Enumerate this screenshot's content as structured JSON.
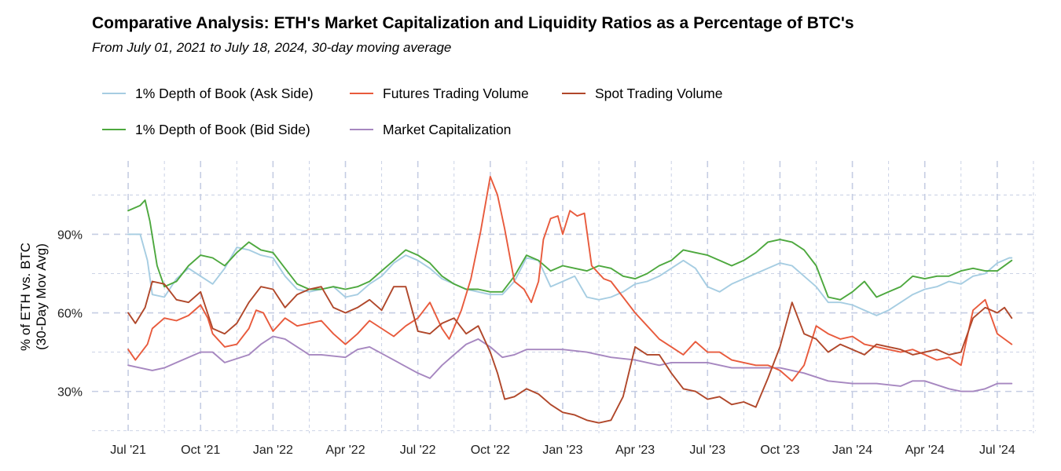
{
  "chart_data": {
    "type": "line",
    "title": "Comparative Analysis: ETH's Market Capitalization and Liquidity Ratios as a Percentage of BTC's",
    "subtitle": "From July 01, 2021 to July 18, 2024, 30-day moving average",
    "ylabel_line1": "% of ETH vs. BTC",
    "ylabel_line2": "(30-Day Mov Avg)",
    "ylim": [
      14,
      118
    ],
    "xlim": [
      -1.5,
      37.6
    ],
    "y_ticks": [
      {
        "value": 30,
        "label": "30%"
      },
      {
        "value": 60,
        "label": "60%"
      },
      {
        "value": 90,
        "label": "90%"
      }
    ],
    "x_ticks": [
      {
        "value": 0,
        "label": "Jul '21"
      },
      {
        "value": 3,
        "label": "Oct '21"
      },
      {
        "value": 6,
        "label": "Jan '22"
      },
      {
        "value": 9,
        "label": "Apr '22"
      },
      {
        "value": 12,
        "label": "Jul '22"
      },
      {
        "value": 15,
        "label": "Oct '22"
      },
      {
        "value": 18,
        "label": "Jan '23"
      },
      {
        "value": 21,
        "label": "Apr '23"
      },
      {
        "value": 24,
        "label": "Jul '23"
      },
      {
        "value": 27,
        "label": "Oct '23"
      },
      {
        "value": 30,
        "label": "Jan '24"
      },
      {
        "value": 33,
        "label": "Apr '24"
      },
      {
        "value": 36,
        "label": "Jul '24"
      }
    ],
    "grid": true,
    "legend_position": "top-left",
    "series": [
      {
        "name": "1% Depth of Book (Ask Side)",
        "color": "#a6cde2",
        "x": [
          0,
          0.5,
          0.8,
          1,
          1.5,
          2,
          2.5,
          3,
          3.5,
          4,
          4.5,
          5,
          5.5,
          6,
          6.5,
          7,
          7.5,
          8,
          8.5,
          9,
          9.5,
          10,
          10.5,
          11,
          11.5,
          12,
          12.5,
          13,
          13.5,
          14,
          14.5,
          15,
          15.5,
          16,
          16.5,
          17,
          17.5,
          18,
          18.5,
          19,
          19.5,
          20,
          20.5,
          21,
          21.5,
          22,
          22.5,
          23,
          23.5,
          24,
          24.5,
          25,
          25.5,
          26,
          26.5,
          27,
          27.5,
          28,
          28.5,
          29,
          29.5,
          30,
          30.5,
          31,
          31.5,
          32,
          32.5,
          33,
          33.5,
          34,
          34.5,
          35,
          35.5,
          36,
          36.5,
          36.6
        ],
        "y": [
          90,
          90,
          80,
          67,
          66,
          73,
          77,
          74,
          71,
          77,
          85,
          84,
          82,
          81,
          74,
          69,
          68,
          69,
          70,
          66,
          67,
          71,
          74,
          79,
          82,
          80,
          77,
          73,
          71,
          69,
          68,
          67,
          67,
          72,
          81,
          80,
          70,
          72,
          74,
          66,
          65,
          66,
          68,
          71,
          72,
          74,
          77,
          80,
          77,
          70,
          68,
          71,
          73,
          75,
          77,
          79,
          78,
          74,
          70,
          64,
          64,
          63,
          61,
          59,
          61,
          64,
          67,
          69,
          70,
          72,
          71,
          74,
          75,
          79,
          81,
          81
        ]
      },
      {
        "name": "1% Depth of Book (Bid Side)",
        "color": "#4da83e",
        "x": [
          0,
          0.5,
          0.7,
          0.9,
          1.2,
          1.5,
          2,
          2.5,
          3,
          3.5,
          4,
          4.5,
          5,
          5.5,
          6,
          6.5,
          7,
          7.5,
          8,
          8.5,
          9,
          9.5,
          10,
          10.5,
          11,
          11.5,
          12,
          12.5,
          13,
          13.5,
          14,
          14.5,
          15,
          15.5,
          16,
          16.5,
          17,
          17.5,
          18,
          18.5,
          19,
          19.5,
          20,
          20.5,
          21,
          21.5,
          22,
          22.5,
          23,
          23.5,
          24,
          24.5,
          25,
          25.5,
          26,
          26.5,
          27,
          27.5,
          28,
          28.5,
          29,
          29.5,
          30,
          30.5,
          31,
          31.5,
          32,
          32.5,
          33,
          33.5,
          34,
          34.5,
          35,
          35.5,
          36,
          36.6
        ],
        "y": [
          99,
          101,
          103,
          95,
          78,
          70,
          72,
          78,
          82,
          81,
          78,
          83,
          87,
          84,
          83,
          77,
          71,
          69,
          69,
          70,
          69,
          70,
          72,
          76,
          80,
          84,
          82,
          79,
          74,
          71,
          69,
          69,
          68,
          68,
          74,
          82,
          80,
          76,
          78,
          77,
          76,
          78,
          77,
          74,
          73,
          75,
          78,
          80,
          84,
          83,
          82,
          80,
          78,
          80,
          83,
          87,
          88,
          87,
          84,
          78,
          66,
          65,
          68,
          72,
          66,
          68,
          70,
          74,
          73,
          74,
          74,
          76,
          77,
          76,
          76,
          80
        ]
      },
      {
        "name": "Market Capitalization",
        "color": "#a687c0",
        "x": [
          0,
          1,
          1.5,
          2,
          3,
          3.5,
          4,
          5,
          5.5,
          6,
          6.5,
          7,
          7.5,
          8,
          9,
          9.5,
          10,
          11,
          12,
          12.5,
          13,
          13.5,
          14,
          14.5,
          15,
          15.5,
          16,
          16.5,
          17,
          18,
          19,
          20,
          21,
          22,
          22.5,
          23,
          24,
          25,
          26,
          27,
          28,
          29,
          30,
          31,
          32,
          32.5,
          33,
          34,
          34.5,
          35,
          35.5,
          36,
          36.6
        ],
        "y": [
          40,
          38,
          39,
          41,
          45,
          45,
          41,
          44,
          48,
          51,
          50,
          47,
          44,
          44,
          43,
          46,
          47,
          42,
          37,
          35,
          40,
          44,
          48,
          50,
          47,
          43,
          44,
          46,
          46,
          46,
          45,
          43,
          42,
          40,
          41,
          41,
          41,
          39,
          39,
          39,
          37,
          34,
          33,
          33,
          32,
          34,
          34,
          31,
          30,
          30,
          31,
          33,
          33
        ]
      },
      {
        "name": "Futures Trading Volume",
        "color": "#e85a3c",
        "x": [
          0,
          0.3,
          0.8,
          1,
          1.5,
          2,
          2.5,
          3,
          3.3,
          3.5,
          4,
          4.5,
          5,
          5.3,
          5.6,
          6,
          6.5,
          7,
          7.5,
          8,
          8.5,
          9,
          9.5,
          10,
          10.5,
          11,
          11.5,
          12,
          12.5,
          13,
          13.3,
          13.8,
          14.2,
          14.6,
          15,
          15.3,
          15.6,
          16,
          16.4,
          16.7,
          17,
          17.2,
          17.5,
          17.8,
          18,
          18.3,
          18.6,
          18.9,
          19.2,
          19.7,
          20,
          20.5,
          21,
          21.5,
          22,
          22.5,
          23,
          23.5,
          24,
          24.5,
          25,
          25.5,
          26,
          26.5,
          27,
          27.5,
          28,
          28.5,
          29,
          29.5,
          30,
          30.5,
          31,
          31.5,
          32,
          32.5,
          33,
          33.5,
          34,
          34.5,
          35,
          35.5,
          36,
          36.3,
          36.6
        ],
        "y": [
          46,
          42,
          48,
          54,
          58,
          57,
          59,
          63,
          58,
          52,
          47,
          48,
          54,
          61,
          60,
          53,
          58,
          55,
          56,
          57,
          52,
          48,
          52,
          57,
          54,
          51,
          55,
          58,
          64,
          54,
          50,
          61,
          73,
          91,
          112,
          105,
          92,
          72,
          69,
          64,
          72,
          88,
          96,
          97,
          90,
          99,
          97,
          98,
          78,
          73,
          72,
          66,
          60,
          55,
          50,
          47,
          44,
          49,
          45,
          45,
          42,
          41,
          40,
          40,
          38,
          34,
          40,
          55,
          52,
          50,
          51,
          48,
          47,
          46,
          45,
          46,
          44,
          42,
          43,
          40,
          61,
          65,
          52,
          50,
          48
        ]
      },
      {
        "name": "Spot Trading Volume",
        "color": "#b0472a",
        "x": [
          0,
          0.3,
          0.7,
          1,
          1.5,
          2,
          2.5,
          3,
          3.5,
          4,
          4.5,
          5,
          5.5,
          6,
          6.5,
          7,
          7.5,
          8,
          8.5,
          9,
          9.5,
          10,
          10.5,
          11,
          11.5,
          12,
          12.5,
          13,
          13.5,
          14,
          14.5,
          15,
          15.3,
          15.6,
          16,
          16.5,
          17,
          17.5,
          18,
          18.5,
          19,
          19.5,
          20,
          20.5,
          21,
          21.5,
          22,
          22.5,
          23,
          23.5,
          24,
          24.5,
          25,
          25.5,
          26,
          26.5,
          27,
          27.5,
          28,
          28.5,
          29,
          29.5,
          30,
          30.5,
          31,
          31.5,
          32,
          32.5,
          33,
          33.5,
          34,
          34.5,
          35,
          35.5,
          36,
          36.3,
          36.6
        ],
        "y": [
          60,
          56,
          62,
          72,
          71,
          65,
          64,
          68,
          54,
          52,
          56,
          64,
          70,
          69,
          62,
          67,
          69,
          70,
          62,
          60,
          62,
          65,
          61,
          70,
          70,
          53,
          52,
          56,
          58,
          52,
          55,
          45,
          37,
          27,
          28,
          31,
          29,
          25,
          22,
          21,
          19,
          18,
          19,
          28,
          47,
          44,
          44,
          37,
          31,
          30,
          27,
          28,
          25,
          26,
          24,
          35,
          47,
          64,
          52,
          50,
          45,
          48,
          46,
          44,
          48,
          47,
          46,
          44,
          45,
          46,
          44,
          45,
          58,
          62,
          60,
          62,
          58
        ]
      }
    ]
  }
}
